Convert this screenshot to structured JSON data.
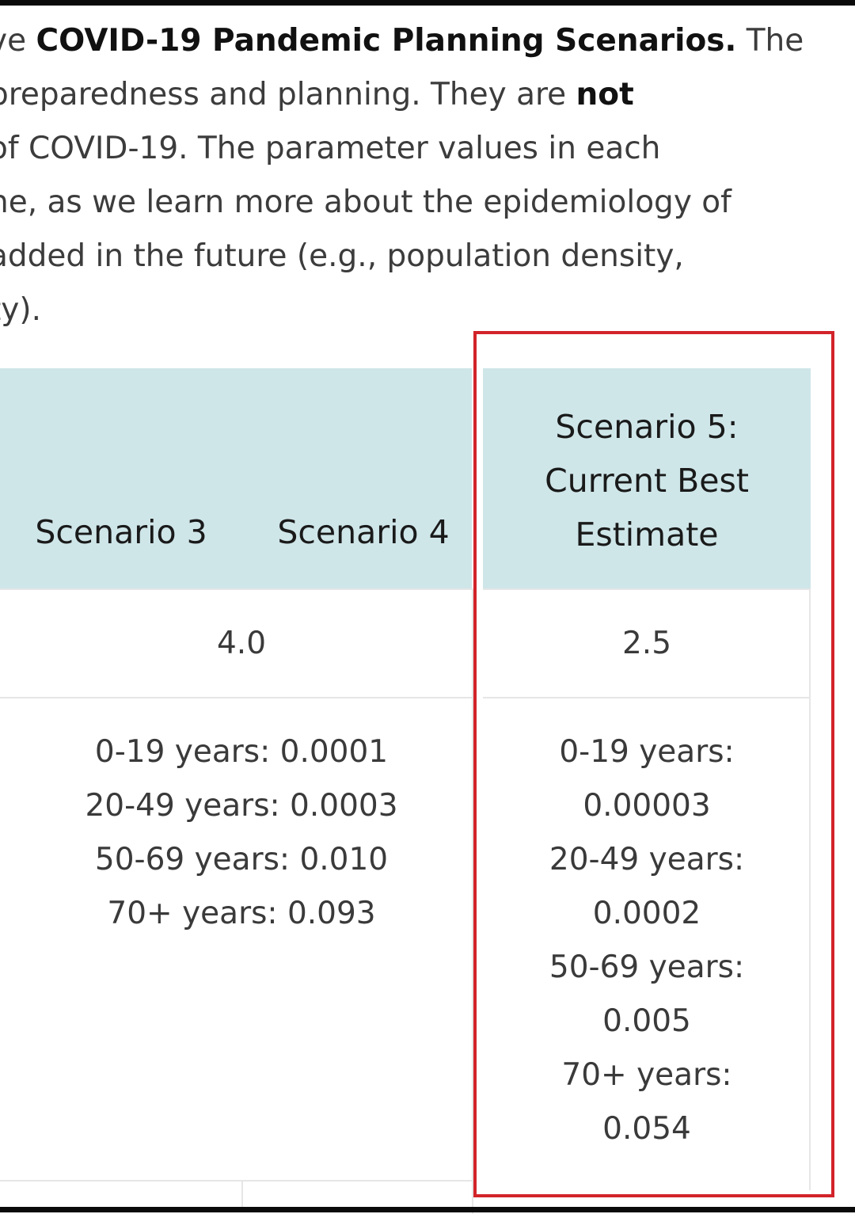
{
  "intro": {
    "lines": [
      {
        "pre": "ve ",
        "bold": "COVID-19 Pandemic Planning Scenarios.",
        "post": " The"
      },
      {
        "pre": "preparedness and planning.  They are ",
        "bold": "not",
        "post": ""
      },
      {
        "pre": "of COVID-19.  The parameter values in each",
        "bold": "",
        "post": ""
      },
      {
        "pre": "ne, as we learn more about the epidemiology of",
        "bold": "",
        "post": ""
      },
      {
        "pre": " added in the future (e.g., population density,",
        "bold": "",
        "post": ""
      },
      {
        "pre": "ty).",
        "bold": "",
        "post": ""
      }
    ]
  },
  "table": {
    "headers": {
      "scenario3": "Scenario 3",
      "scenario4": "Scenario 4",
      "scenario5": [
        "Scenario 5:",
        "Current Best",
        "Estimate"
      ]
    },
    "row1": {
      "scenario3_4": "4.0",
      "scenario5": "2.5"
    },
    "row2": {
      "scenario3_4": [
        "0-19 years: 0.0001",
        "20-49 years: 0.0003",
        "50-69 years: 0.010",
        "70+ years: 0.093"
      ],
      "scenario5": [
        "0-19 years:",
        "0.00003",
        "20-49 years:",
        "0.0002",
        "50-69 years:",
        "0.005",
        "70+ years:",
        "0.054"
      ]
    }
  },
  "colors": {
    "header_bg": "#cfe6e9",
    "highlight_border": "#d2232a"
  }
}
